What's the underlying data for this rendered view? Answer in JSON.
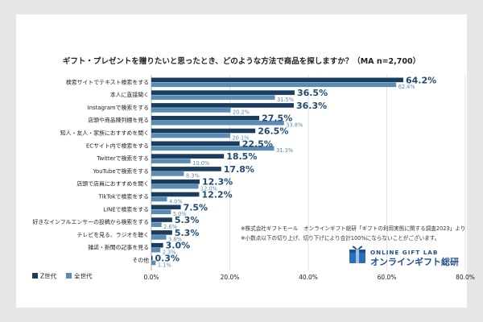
{
  "chart_data": {
    "type": "bar",
    "orientation": "horizontal",
    "title": "ギフト・プレゼントを贈りたいと思ったとき、どのような方法で商品を探しますか？（MA n=2,700）",
    "categories": [
      "検索サイトでテキスト検索をする",
      "本人に直接聞く",
      "Instagramで検索をする",
      "店頭や商品陳列棚を見る",
      "知人・友人・家族におすすめを聞く",
      "ECサイト内で検索をする",
      "Twitterで検索をする",
      "YouTubeで検索をする",
      "店頭で店員におすすめを聞く",
      "TikTokで検索をする",
      "LINEで検索をする",
      "好きなインフルエンサーの投稿から検索をする",
      "テレビを見る、ラジオを聴く",
      "雑誌・新聞の記事を見る",
      "その他"
    ],
    "series": [
      {
        "name": "Z世代",
        "color": "#1a3c5e",
        "values": [
          64.2,
          36.5,
          36.3,
          27.5,
          26.5,
          22.5,
          18.5,
          17.8,
          12.3,
          12.2,
          7.5,
          5.3,
          5.3,
          3.0,
          0.3
        ],
        "labels": [
          "64.2%",
          "36.5%",
          "36.3%",
          "27.5%",
          "26.5%",
          "22.5%",
          "18.5%",
          "17.8%",
          "12.3%",
          "12.2%",
          "7.5%",
          "5.3%",
          "5.3%",
          "3.0%",
          "0.3%"
        ]
      },
      {
        "name": "全世代",
        "color": "#5a8bb5",
        "values": [
          62.4,
          31.5,
          20.2,
          33.8,
          20.1,
          31.3,
          10.0,
          8.3,
          12.0,
          4.0,
          5.0,
          2.6,
          3.8,
          2.3,
          1.1
        ],
        "labels": [
          "62.4%",
          "31.5%",
          "20.2%",
          "33.8%",
          "20.1%",
          "31.3%",
          "10.0%",
          "8.3%",
          "12.0%",
          "4.0%",
          "5.0%",
          "2.6%",
          "3.8%",
          "2.3%",
          "1.1%"
        ]
      }
    ],
    "xlim": [
      0,
      80
    ],
    "xticks": [
      "0.0%",
      "20.0%",
      "40.0%",
      "60.0%",
      "80.0%"
    ],
    "xtick_values": [
      0,
      20,
      40,
      60,
      80
    ],
    "legend": [
      "Z世代",
      "全世代"
    ],
    "notes": [
      "※株式会社ギフトモール　オンラインギフト総研「ギフトの利用実態に関する調査2023」より",
      "※小数点以下の切り上げ、切り下げにより合計100%にならないことがございます。"
    ]
  },
  "logo": {
    "upper": "ONLINE GIFT LAB",
    "lower": "オンラインギフト総研",
    "color": "#1f4f8f"
  }
}
